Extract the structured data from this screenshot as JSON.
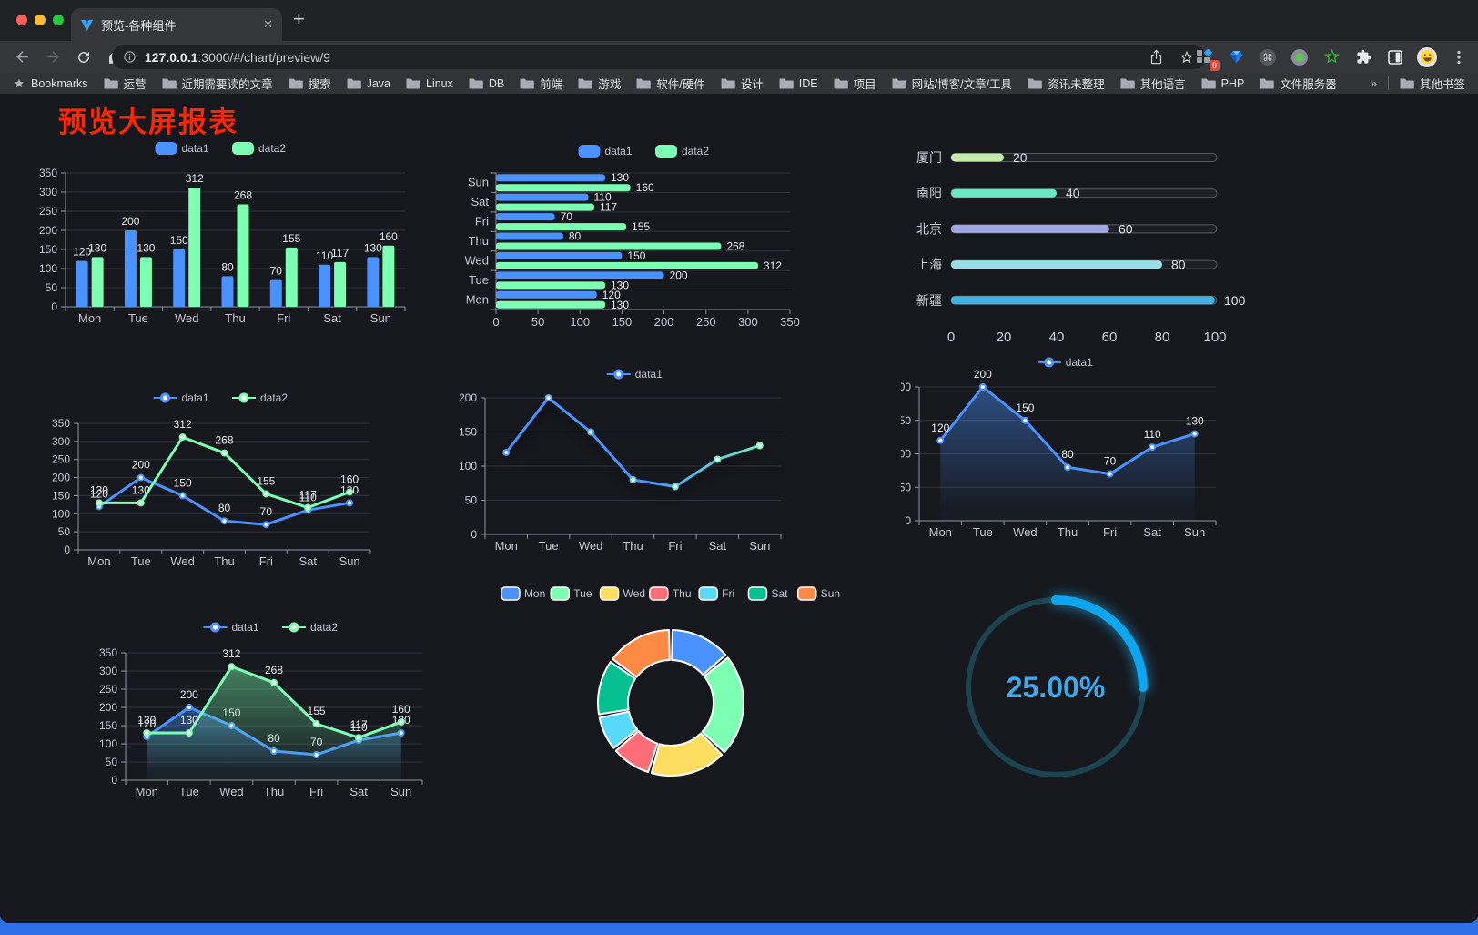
{
  "browser": {
    "tab_title": "预览-各种组件",
    "close_glyph": "✕",
    "new_tab_glyph": "+",
    "url": {
      "host": "127.0.0.1",
      "rest": ":3000/#/chart/preview/9"
    },
    "extensions_badge": "9",
    "toolbar_icons": [
      "back",
      "forward",
      "reload",
      "home",
      "page-info",
      "share",
      "bookmark-star",
      "extension-grid",
      "gem",
      "command",
      "record-dot",
      "green-star",
      "puzzle",
      "split-view",
      "profile-avatar",
      "menu"
    ],
    "bookmarks_bar": {
      "label": "Bookmarks",
      "folders": [
        "运营",
        "近期需要读的文章",
        "搜索",
        "Java",
        "Linux",
        "DB",
        "前端",
        "游戏",
        "软件/硬件",
        "设计",
        "IDE",
        "项目",
        "网站/博客/文章/工具",
        "资讯未整理",
        "其他语言",
        "PHP",
        "文件服务器"
      ],
      "overflow_glyph": "»",
      "other_bookmarks": "其他书签"
    }
  },
  "page": {
    "title": "预览大屏报表",
    "title_color": "#ff2600"
  },
  "chart_data": [
    {
      "id": "grouped-bar",
      "type": "bar",
      "legend_position": "top",
      "grid": true,
      "categories": [
        "Mon",
        "Tue",
        "Wed",
        "Thu",
        "Fri",
        "Sat",
        "Sun"
      ],
      "series": [
        {
          "name": "data1",
          "color": "#4992ff",
          "values": [
            120,
            200,
            150,
            80,
            70,
            110,
            130
          ]
        },
        {
          "name": "data2",
          "color": "#7cffb2",
          "values": [
            130,
            130,
            312,
            268,
            155,
            117,
            160
          ]
        }
      ],
      "ylim": [
        0,
        350
      ],
      "ystep": 50,
      "labels": true
    },
    {
      "id": "grouped-hbar",
      "type": "bar",
      "orientation": "horizontal",
      "legend_position": "top",
      "categories": [
        "Sun",
        "Sat",
        "Fri",
        "Thu",
        "Wed",
        "Tue",
        "Mon"
      ],
      "series": [
        {
          "name": "data1",
          "color": "#4992ff",
          "values": [
            130,
            110,
            70,
            80,
            150,
            200,
            120
          ]
        },
        {
          "name": "data2",
          "color": "#7cffb2",
          "values": [
            160,
            117,
            155,
            268,
            312,
            130,
            130
          ]
        }
      ],
      "xlim": [
        0,
        350
      ],
      "xstep": 50,
      "labels": true
    },
    {
      "id": "progress-bars",
      "type": "bar",
      "subtype": "progress-pills",
      "rows": [
        {
          "label": "厦门",
          "value": 20,
          "color": "#c4ebad"
        },
        {
          "label": "南阳",
          "value": 40,
          "color": "#6be6c1"
        },
        {
          "label": "北京",
          "value": 60,
          "color": "#a0a7e6"
        },
        {
          "label": "上海",
          "value": 80,
          "color": "#96dee8"
        },
        {
          "label": "新疆",
          "value": 100,
          "color": "#3fb1e3"
        }
      ],
      "xlim": [
        0,
        100
      ],
      "xticks": [
        0,
        20,
        40,
        60,
        80,
        100
      ]
    },
    {
      "id": "line-two-series",
      "type": "line",
      "legend_position": "top",
      "categories": [
        "Mon",
        "Tue",
        "Wed",
        "Thu",
        "Fri",
        "Sat",
        "Sun"
      ],
      "series": [
        {
          "name": "data1",
          "color": "#4992ff",
          "values": [
            120,
            200,
            150,
            80,
            70,
            110,
            130
          ]
        },
        {
          "name": "data2",
          "color": "#7cffb2",
          "values": [
            130,
            130,
            312,
            268,
            155,
            117,
            160
          ]
        }
      ],
      "ylim": [
        0,
        350
      ],
      "ystep": 50,
      "labels": true
    },
    {
      "id": "line-gradient",
      "type": "line",
      "legend_position": "top",
      "shadow": true,
      "categories": [
        "Mon",
        "Tue",
        "Wed",
        "Thu",
        "Fri",
        "Sat",
        "Sun"
      ],
      "series": [
        {
          "name": "data1",
          "color_start": "#4992ff",
          "color_end": "#7cffb2",
          "values": [
            120,
            200,
            150,
            80,
            70,
            110,
            130
          ]
        }
      ],
      "ylim": [
        0,
        200
      ],
      "ystep": 50,
      "labels": false
    },
    {
      "id": "area-single",
      "type": "area",
      "legend_position": "top",
      "categories": [
        "Mon",
        "Tue",
        "Wed",
        "Thu",
        "Fri",
        "Sat",
        "Sun"
      ],
      "series": [
        {
          "name": "data1",
          "color": "#4992ff",
          "values": [
            120,
            200,
            150,
            80,
            70,
            110,
            130
          ]
        }
      ],
      "ylim": [
        0,
        200
      ],
      "ystep": 50,
      "labels": true
    },
    {
      "id": "area-two-series",
      "type": "area",
      "legend_position": "top",
      "categories": [
        "Mon",
        "Tue",
        "Wed",
        "Thu",
        "Fri",
        "Sat",
        "Sun"
      ],
      "series": [
        {
          "name": "data1",
          "color": "#4992ff",
          "values": [
            120,
            200,
            150,
            80,
            70,
            110,
            130
          ]
        },
        {
          "name": "data2",
          "color": "#7cffb2",
          "values": [
            130,
            130,
            312,
            268,
            155,
            117,
            160
          ]
        }
      ],
      "ylim": [
        0,
        350
      ],
      "ystep": 50,
      "labels": true
    },
    {
      "id": "donut",
      "type": "pie",
      "inner_radius_ratio": 0.59,
      "legend_position": "top",
      "items": [
        {
          "name": "Mon",
          "value": 120,
          "color": "#4992ff"
        },
        {
          "name": "Tue",
          "value": 200,
          "color": "#7cffb2"
        },
        {
          "name": "Wed",
          "value": 150,
          "color": "#fddd60"
        },
        {
          "name": "Thu",
          "value": 80,
          "color": "#ff6e76"
        },
        {
          "name": "Fri",
          "value": 70,
          "color": "#58d9f9"
        },
        {
          "name": "Sat",
          "value": 110,
          "color": "#05c091"
        },
        {
          "name": "Sun",
          "value": 130,
          "color": "#ff8a45"
        }
      ]
    },
    {
      "id": "gauge",
      "type": "gauge",
      "value": 25,
      "max": 100,
      "label": "25.00%",
      "color": "#0ea5ef",
      "track_color": "#1c4350",
      "label_color": "#3fa9e8"
    }
  ]
}
